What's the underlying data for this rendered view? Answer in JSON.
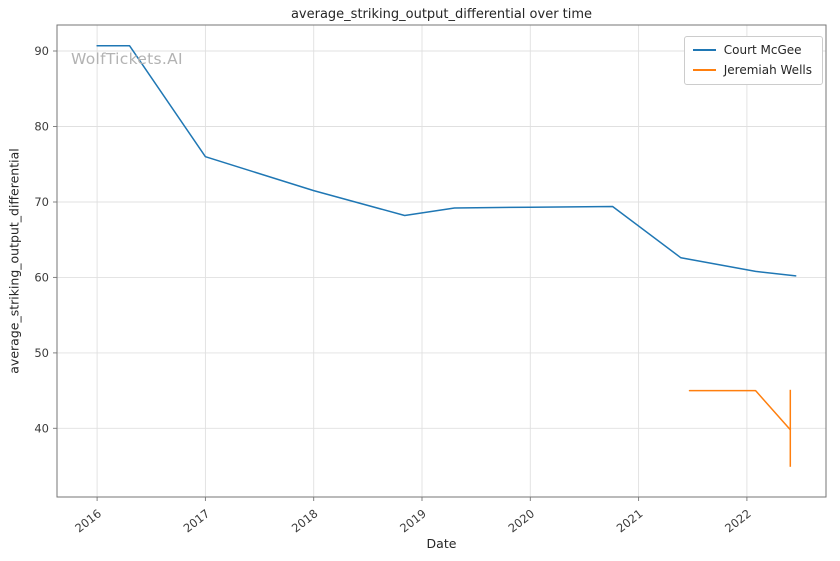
{
  "watermark": "WolfTickets.AI",
  "chart_data": {
    "type": "line",
    "title": "average_striking_output_differential over time",
    "xlabel": "Date",
    "ylabel": "average_striking_output_differential",
    "x_ticks": [
      2016,
      2017,
      2018,
      2019,
      2020,
      2021,
      2022
    ],
    "y_ticks": [
      40,
      50,
      60,
      70,
      80,
      90
    ],
    "xlim": [
      2015.63,
      2022.73
    ],
    "ylim": [
      30.9,
      93.45
    ],
    "grid": true,
    "legend_position": "upper right",
    "series": [
      {
        "name": "Court McGee",
        "color": "#1f77b4",
        "x": [
          2016.0,
          2016.3,
          2017.0,
          2018.0,
          2018.84,
          2019.3,
          2020.0,
          2020.76,
          2021.39,
          2022.08,
          2022.45
        ],
        "y": [
          90.7,
          90.7,
          76.0,
          71.5,
          68.2,
          69.2,
          69.3,
          69.4,
          62.6,
          60.8,
          60.2
        ]
      },
      {
        "name": "Jeremiah Wells",
        "color": "#ff7f0e",
        "x": [
          2021.47,
          2022.08,
          2022.4
        ],
        "y": [
          45.0,
          45.0,
          39.8
        ],
        "error_bar": {
          "x": 2022.4,
          "y_min": 34.9,
          "y_max": 45.1
        }
      }
    ]
  }
}
